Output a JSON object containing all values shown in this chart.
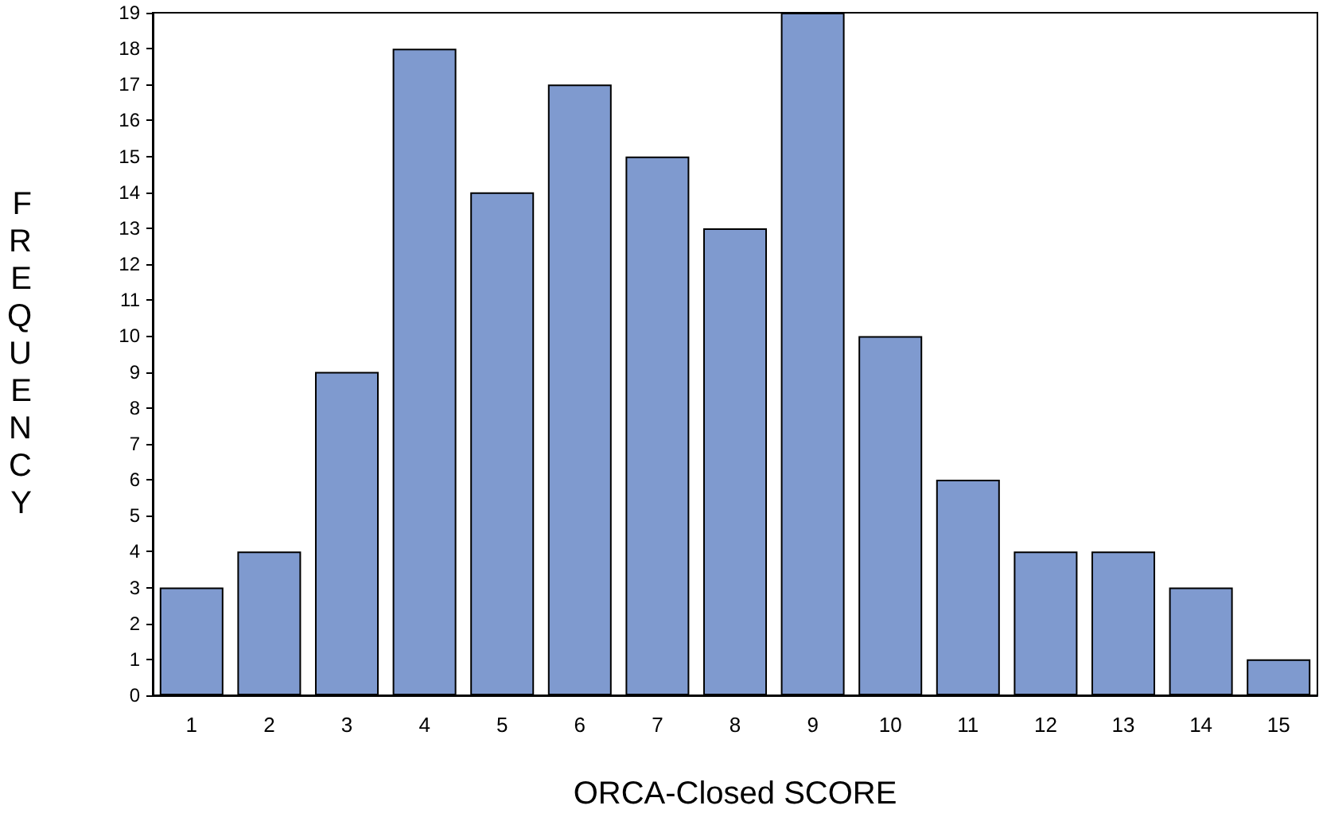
{
  "chart_data": {
    "type": "bar",
    "xlabel": "ORCA-Closed SCORE",
    "ylabel": "FREQUENCY",
    "categories": [
      "1",
      "2",
      "3",
      "4",
      "5",
      "6",
      "7",
      "8",
      "9",
      "10",
      "11",
      "12",
      "13",
      "14",
      "15"
    ],
    "values": [
      3,
      4,
      9,
      18,
      14,
      17,
      15,
      13,
      19,
      10,
      6,
      4,
      4,
      3,
      1
    ],
    "color": "#7f9acf",
    "ylim": [
      0,
      19
    ],
    "yticks": [
      0,
      1,
      2,
      3,
      4,
      5,
      6,
      7,
      8,
      9,
      10,
      11,
      12,
      13,
      14,
      15,
      16,
      17,
      18,
      19
    ],
    "grid": false
  }
}
